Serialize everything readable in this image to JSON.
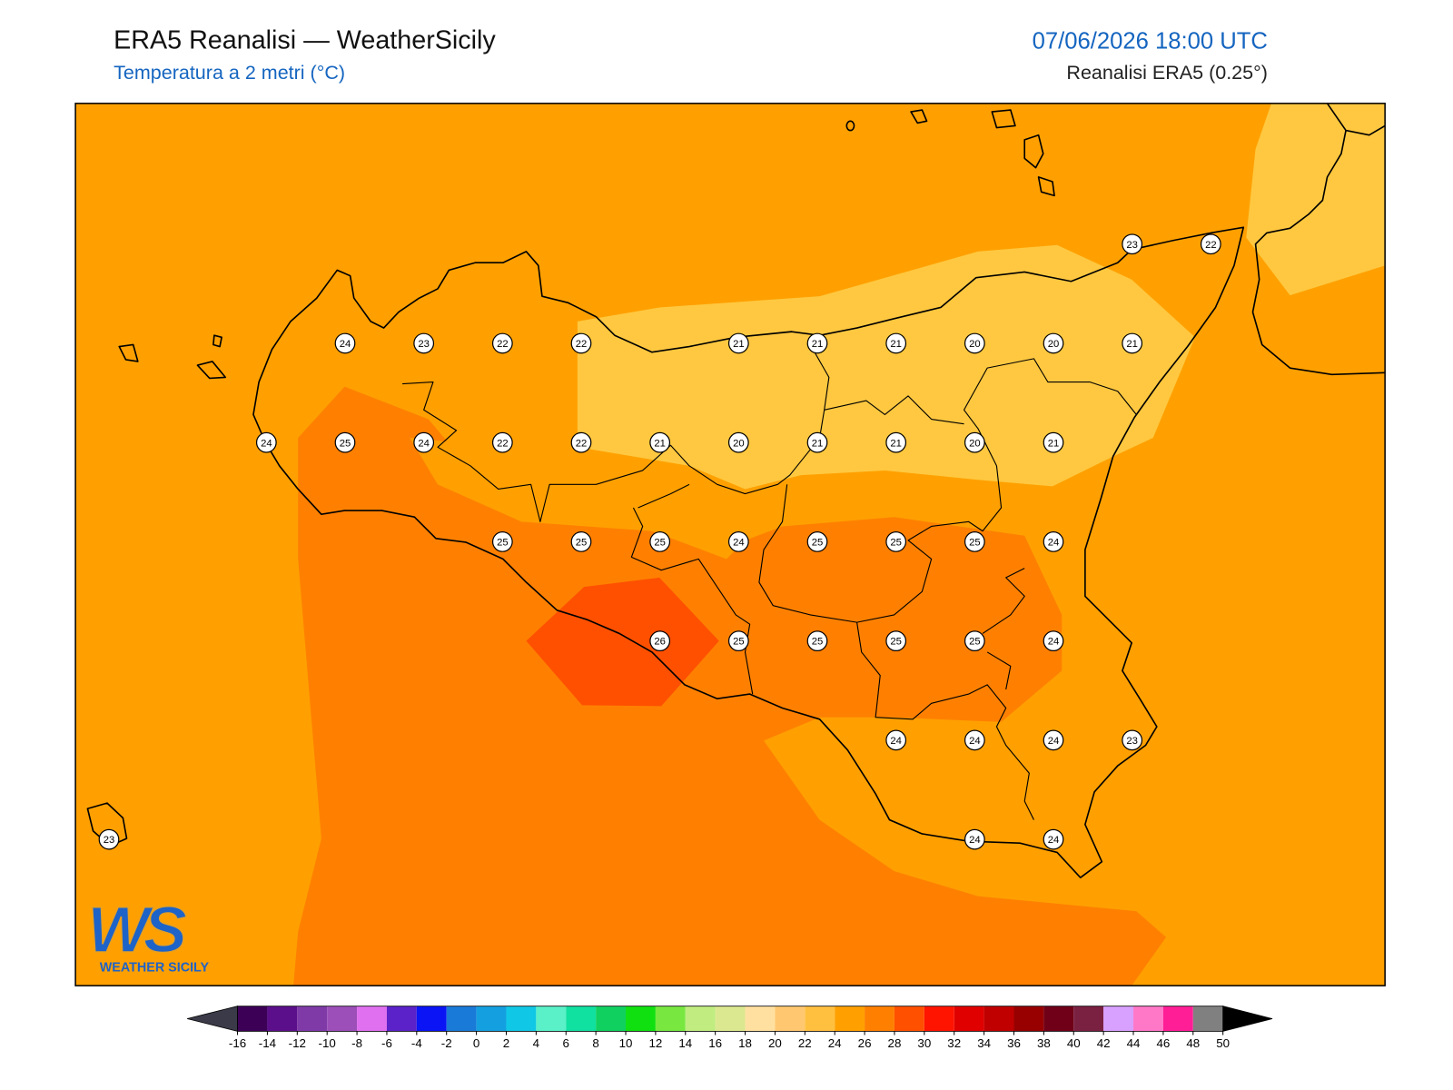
{
  "header": {
    "title": "ERA5 Reanalisi — WeatherSicily",
    "subtitle": "Temperatura a 2 metri (°C)",
    "datetime": "07/06/2026 18:00 UTC",
    "source": "Reanalisi ERA5 (0.25°)"
  },
  "map": {
    "station_values": [
      23,
      22,
      24,
      23,
      22,
      22,
      21,
      21,
      21,
      20,
      20,
      21,
      24,
      25,
      24,
      22,
      22,
      21,
      20,
      21,
      21,
      20,
      21,
      25,
      25,
      25,
      24,
      25,
      25,
      25,
      24,
      26,
      25,
      25,
      25,
      25,
      24,
      24,
      24,
      24,
      23,
      23,
      24,
      24
    ]
  },
  "colorbar": {
    "ticks": [
      -16,
      -14,
      -12,
      -10,
      -8,
      -6,
      -4,
      -2,
      0,
      2,
      4,
      6,
      8,
      10,
      12,
      14,
      16,
      18,
      20,
      22,
      24,
      26,
      28,
      30,
      32,
      34,
      36,
      38,
      40,
      42,
      44,
      46,
      48,
      50
    ],
    "colors": [
      "#3d0057",
      "#5c0f8b",
      "#7f3aa8",
      "#9c4fb8",
      "#e070f0",
      "#5a22c8",
      "#0a14f5",
      "#1a7ad8",
      "#14a0e0",
      "#10c8e6",
      "#5af0c8",
      "#10e0a0",
      "#10d060",
      "#10e010",
      "#78e840",
      "#c0ec80",
      "#dce890",
      "#ffe0a0",
      "#ffc870",
      "#ffc040",
      "#ffa000",
      "#ff8000",
      "#ff5000",
      "#ff1400",
      "#e00000",
      "#c00000",
      "#980000",
      "#700018",
      "#7a2040",
      "#d8a0ff",
      "#ff78c8",
      "#ff1e96",
      "#808080",
      "#333333"
    ],
    "under_color": "#3a3a48",
    "over_color": "#000000"
  },
  "logo": {
    "mark": "WS",
    "name": "WEATHER SICILY"
  }
}
